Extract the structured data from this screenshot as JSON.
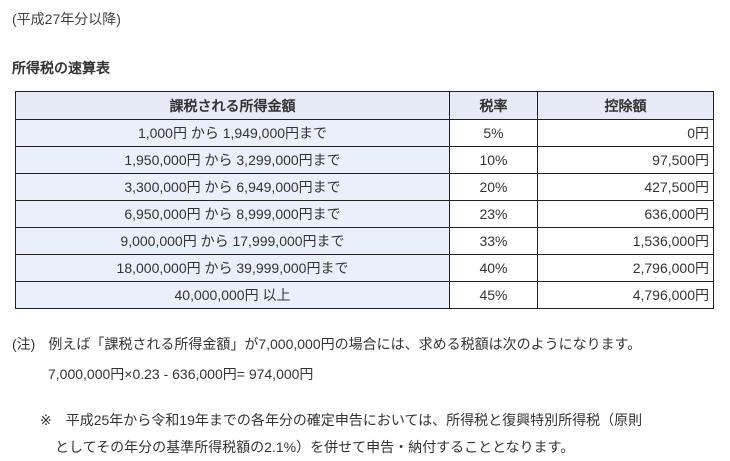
{
  "page": {
    "era_note": "(平成27年分以降)",
    "table_title": "所得税の速算表"
  },
  "table": {
    "headers": [
      "課税される所得金額",
      "税率",
      "控除額"
    ],
    "rows": [
      {
        "income": "1,000円 から 1,949,000円まで",
        "rate": "5%",
        "deduction": "0円"
      },
      {
        "income": "1,950,000円 から 3,299,000円まで",
        "rate": "10%",
        "deduction": "97,500円"
      },
      {
        "income": "3,300,000円 から 6,949,000円まで",
        "rate": "20%",
        "deduction": "427,500円"
      },
      {
        "income": "6,950,000円 から 8,999,000円まで",
        "rate": "23%",
        "deduction": "636,000円"
      },
      {
        "income": "9,000,000円 から 17,999,000円まで",
        "rate": "33%",
        "deduction": "1,536,000円"
      },
      {
        "income": "18,000,000円 から 39,999,000円まで",
        "rate": "40%",
        "deduction": "2,796,000円"
      },
      {
        "income": "40,000,000円 以上",
        "rate": "45%",
        "deduction": "4,796,000円"
      }
    ]
  },
  "notes": {
    "note_marker": "(注)",
    "note_text": "例えば「課税される所得金額」が7,000,000円の場合には、求める税額は次のようになります。",
    "formula": "7,000,000円×0.23 - 636,000円= 974,000円",
    "asterisk_marker": "※",
    "asterisk_line1": "平成25年から令和19年までの各年分の確定申告においては、所得税と復興特別所得税（原則",
    "asterisk_line2": "としてその年分の基準所得税額の2.1%）を併せて申告・納付することとなります。"
  },
  "colors": {
    "header_bg": "#e6eaf6",
    "income_col_bg": "#e9f0fb",
    "border": "#222222",
    "text": "#333333"
  }
}
